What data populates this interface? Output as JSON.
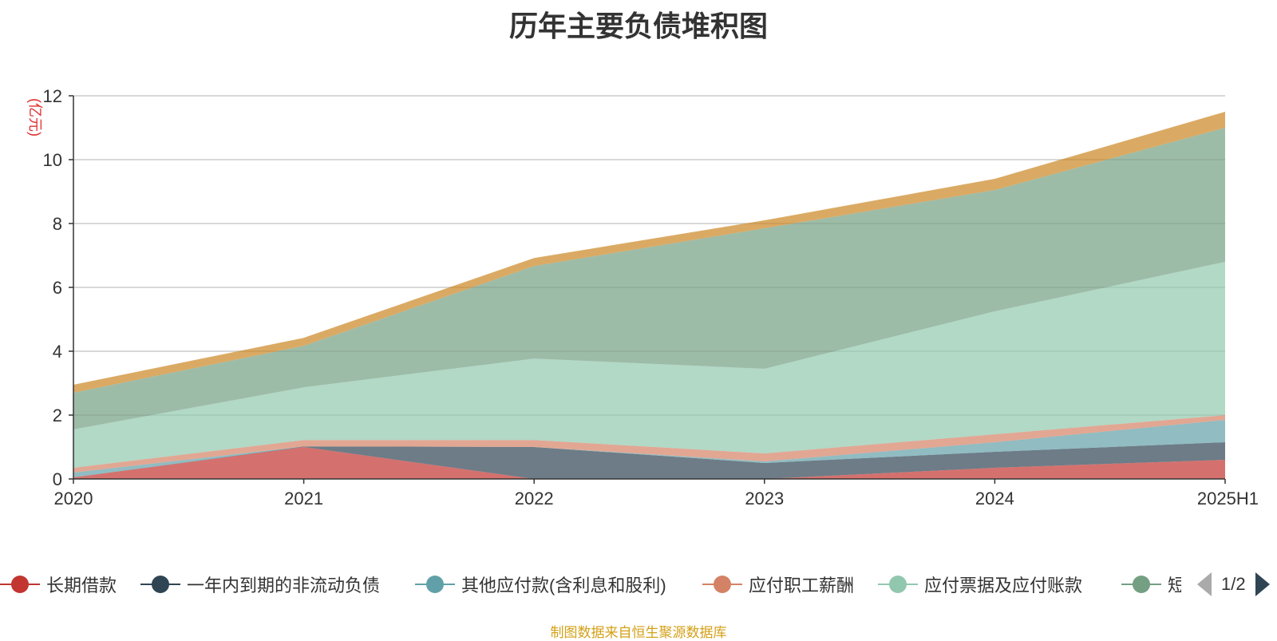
{
  "chart_data": {
    "type": "area",
    "stacked": true,
    "title": "历年主要负债堆积图",
    "ylabel": "(亿元)",
    "xlabel": "",
    "categories": [
      "2020",
      "2021",
      "2022",
      "2023",
      "2024",
      "2025H1"
    ],
    "ylim": [
      0,
      12
    ],
    "yticks": [
      0,
      2,
      4,
      6,
      8,
      10,
      12
    ],
    "grid": true,
    "legend_position": "bottom",
    "series": [
      {
        "name": "长期借款",
        "color": "#c23531",
        "values": [
          0.05,
          1.0,
          0.0,
          0.0,
          0.35,
          0.6
        ]
      },
      {
        "name": "一年内到期的非流动负债",
        "color": "#2f4554",
        "values": [
          0.0,
          0.02,
          1.0,
          0.5,
          0.5,
          0.55
        ]
      },
      {
        "name": "其他应付款(含利息和股利)",
        "color": "#61a0a8",
        "values": [
          0.15,
          0.0,
          0.0,
          0.05,
          0.3,
          0.7
        ]
      },
      {
        "name": "应付职工薪酬",
        "color": "#d48265",
        "values": [
          0.15,
          0.2,
          0.22,
          0.25,
          0.25,
          0.15
        ]
      },
      {
        "name": "应付票据及应付账款",
        "color": "#91c7ae",
        "values": [
          1.2,
          1.65,
          2.55,
          2.65,
          3.85,
          4.8
        ]
      },
      {
        "name": "短期借款",
        "color": "#749f83",
        "values": [
          1.15,
          1.3,
          2.9,
          4.4,
          3.8,
          4.2
        ]
      },
      {
        "name": "",
        "color": "#ca8622",
        "values": [
          0.25,
          0.25,
          0.25,
          0.25,
          0.35,
          0.5
        ]
      }
    ]
  },
  "legend": {
    "items": [
      "长期借款",
      "一年内到期的非流动负债",
      "其他应付款(含利息和股利)",
      "应付职工薪酬",
      "应付票据及应付账款",
      "短"
    ],
    "page_label": "1/2"
  },
  "footer": {
    "source_note": "制图数据来自恒生聚源数据库"
  }
}
